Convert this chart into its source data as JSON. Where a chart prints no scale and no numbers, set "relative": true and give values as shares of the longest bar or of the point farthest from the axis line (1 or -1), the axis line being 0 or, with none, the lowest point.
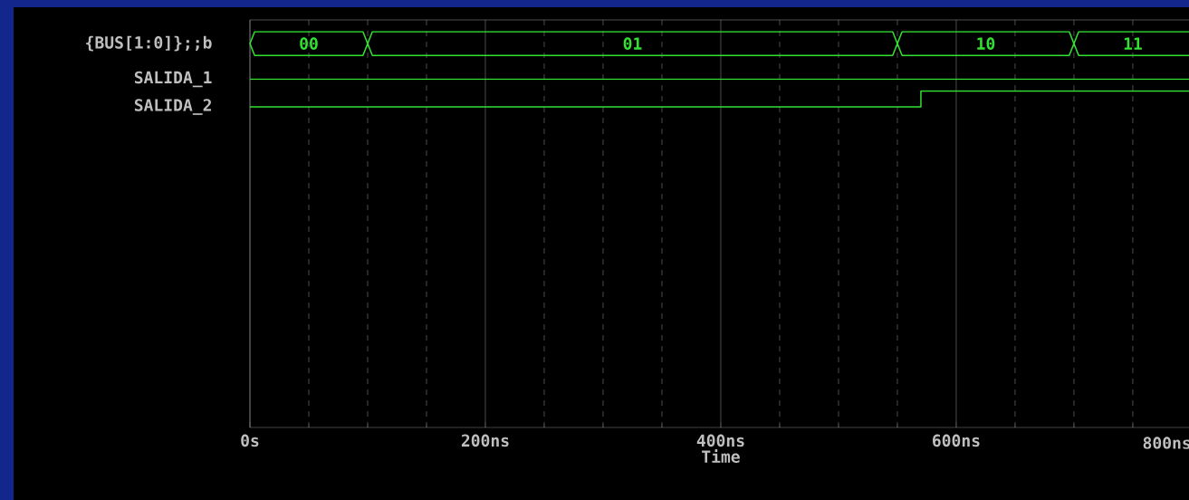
{
  "chart_data": {
    "type": "step",
    "xlabel": "Time",
    "relative": true,
    "xlim": [
      0,
      800
    ],
    "xticks": [
      {
        "value": 0,
        "label": "0s"
      },
      {
        "value": 50,
        "label": null
      },
      {
        "value": 100,
        "label": null
      },
      {
        "value": 150,
        "label": null
      },
      {
        "value": 200,
        "label": "200ns"
      },
      {
        "value": 250,
        "label": null
      },
      {
        "value": 300,
        "label": null
      },
      {
        "value": 350,
        "label": null
      },
      {
        "value": 400,
        "label": "400ns"
      },
      {
        "value": 450,
        "label": null
      },
      {
        "value": 500,
        "label": null
      },
      {
        "value": 550,
        "label": null
      },
      {
        "value": 600,
        "label": "600ns"
      },
      {
        "value": 650,
        "label": null
      },
      {
        "value": 700,
        "label": null
      },
      {
        "value": 750,
        "label": null
      },
      {
        "value": 800,
        "label": "800ns"
      }
    ],
    "grid": "x",
    "legend": false,
    "series": [
      {
        "name": "{BUS[1:0]};;b",
        "type": "line",
        "color": "#33e033",
        "x": [
          0,
          4,
          96,
          100,
          104,
          546,
          550,
          554,
          696,
          700,
          704,
          800
        ],
        "values": [
          0.97,
          1,
          1,
          0.97,
          1,
          1,
          0.97,
          1,
          1,
          0.97,
          1,
          1
        ]
      },
      {
        "type": "line",
        "color": "#33e033",
        "x": [
          0,
          4,
          96,
          100,
          104,
          546,
          550,
          554,
          696,
          700,
          704,
          800
        ],
        "values": [
          0.97,
          0.94,
          0.94,
          0.97,
          0.94,
          0.94,
          0.97,
          0.94,
          0.94,
          0.97,
          0.94,
          0.94
        ]
      },
      {
        "name": "SALIDA_1",
        "color": "#33e033",
        "x": [
          0,
          800
        ],
        "values": [
          0.88,
          0.88
        ]
      },
      {
        "name": "SALIDA_2",
        "color": "#33e033",
        "x": [
          0,
          570,
          800
        ],
        "values": [
          0.81,
          0.85,
          0.85
        ]
      }
    ],
    "annotations": [
      "00",
      "01",
      "10",
      "11"
    ]
  }
}
